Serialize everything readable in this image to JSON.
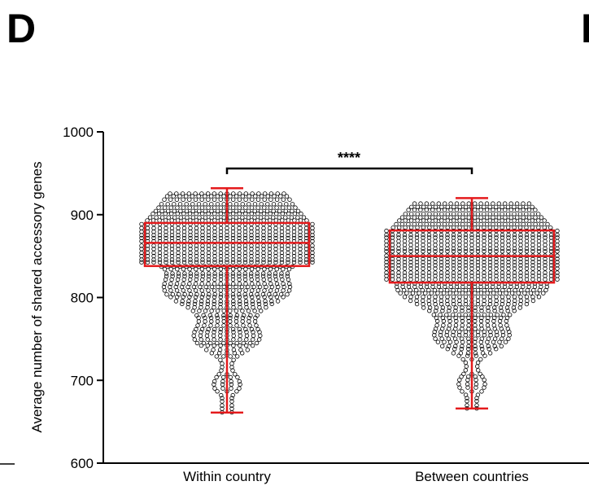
{
  "panel": {
    "letter": "D",
    "next_letter": "E"
  },
  "chart_data": {
    "type": "scatter",
    "subtype": "box-plot-with-beeswarm",
    "title": "",
    "xlabel": "",
    "ylabel": "Average number of shared accessory genes",
    "ylim": [
      600,
      1000
    ],
    "yticks": [
      600,
      700,
      800,
      900,
      1000
    ],
    "categories": [
      "Within country",
      "Between countries"
    ],
    "boxes": [
      {
        "category": "Within country",
        "min": 661,
        "q1": 838,
        "median": 866,
        "q3": 890,
        "max": 932
      },
      {
        "category": "Between countries",
        "min": 666,
        "q1": 818,
        "median": 850,
        "q3": 881,
        "max": 920
      }
    ],
    "significance": {
      "label": "****",
      "from": "Within country",
      "to": "Between countries"
    },
    "grid": false,
    "legend": "none",
    "colors": {
      "box": "#e41a1c",
      "points": "#000000",
      "axis": "#000000"
    }
  }
}
